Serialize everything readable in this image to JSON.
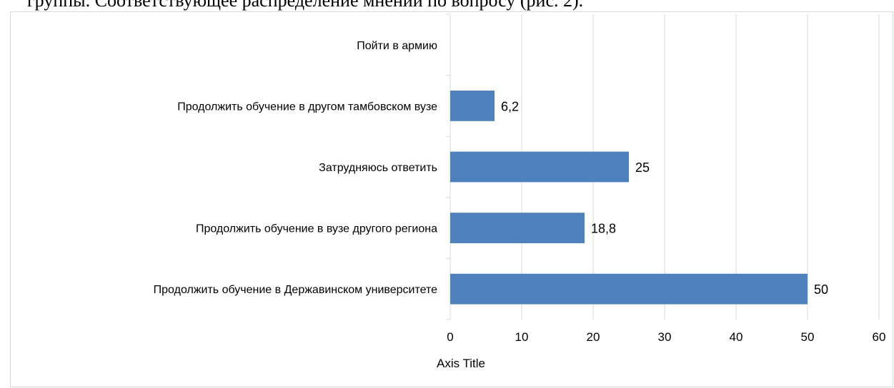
{
  "top_text": "группы. Соответствующее распределение мнений по вопросу (рис. 2).",
  "chart_data": {
    "type": "bar",
    "orientation": "horizontal",
    "categories": [
      "Продолжить обучение в Державинском университете",
      "Продолжить обучение в вузе другого региона",
      "Затрудняюсь ответить",
      "Продолжить обучение в другом тамбовском вузе",
      "Пойти в армию"
    ],
    "values": [
      50,
      18.8,
      25,
      6.2,
      0
    ],
    "data_labels": [
      "50",
      "18,8",
      "25",
      "6,2",
      ""
    ],
    "xlabel": "Axis Title",
    "xlim": [
      0,
      60
    ],
    "xticks": [
      0,
      10,
      20,
      30,
      40,
      50,
      60
    ],
    "xtick_labels": [
      "0",
      "10",
      "20",
      "30",
      "40",
      "50",
      "60"
    ],
    "grid": "vertical",
    "legend": "none",
    "bar_color": "#4f81bd",
    "grid_color": "#d9d9d9"
  }
}
